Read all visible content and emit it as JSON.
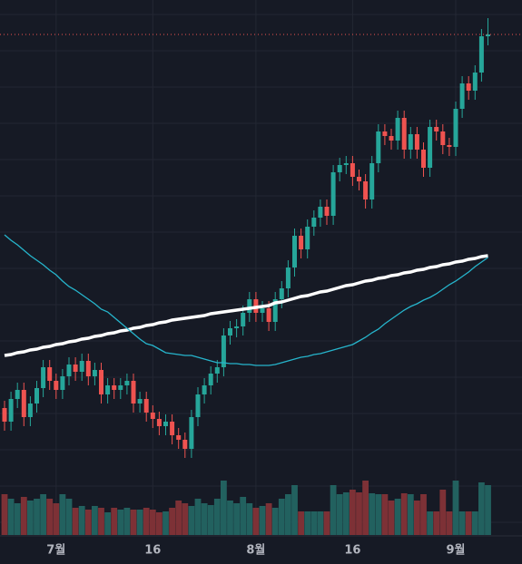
{
  "chart_data": {
    "type": "candlestick",
    "categories": [
      null,
      null,
      null,
      null,
      null,
      null,
      null,
      null,
      "7월",
      null,
      null,
      null,
      null,
      null,
      null,
      null,
      null,
      null,
      null,
      null,
      null,
      null,
      null,
      "16",
      null,
      null,
      null,
      null,
      null,
      null,
      null,
      null,
      null,
      null,
      null,
      null,
      null,
      null,
      null,
      "8월",
      null,
      null,
      null,
      null,
      null,
      null,
      null,
      null,
      null,
      null,
      null,
      null,
      null,
      null,
      "16",
      null,
      null,
      null,
      null,
      null,
      null,
      null,
      null,
      null,
      null,
      null,
      null,
      null,
      null,
      null,
      "9월",
      null,
      null,
      null,
      null,
      null
    ],
    "open": [
      70,
      55,
      80,
      90,
      60,
      75,
      92,
      115,
      100,
      90,
      105,
      118,
      110,
      122,
      105,
      112,
      85,
      95,
      90,
      95,
      100,
      75,
      80,
      65,
      58,
      50,
      55,
      40,
      35,
      25,
      60,
      85,
      95,
      108,
      115,
      150,
      158,
      160,
      175,
      190,
      175,
      180,
      165,
      190,
      202,
      225,
      260,
      245,
      270,
      280,
      292,
      282,
      330,
      338,
      340,
      325,
      320,
      300,
      340,
      375,
      370,
      365,
      390,
      355,
      372,
      355,
      335,
      380,
      375,
      360,
      358,
      400,
      428,
      420,
      440,
      480
    ],
    "high": [
      78,
      88,
      98,
      98,
      83,
      100,
      123,
      123,
      108,
      113,
      126,
      126,
      130,
      130,
      120,
      120,
      103,
      103,
      103,
      108,
      108,
      88,
      88,
      73,
      66,
      63,
      63,
      48,
      43,
      68,
      93,
      103,
      116,
      123,
      158,
      166,
      168,
      183,
      198,
      198,
      188,
      188,
      198,
      210,
      233,
      268,
      268,
      278,
      288,
      300,
      300,
      338,
      346,
      348,
      348,
      333,
      328,
      348,
      383,
      383,
      378,
      398,
      398,
      380,
      380,
      363,
      388,
      388,
      383,
      368,
      408,
      436,
      436,
      448,
      488,
      500
    ],
    "low": [
      45,
      45,
      70,
      50,
      50,
      65,
      82,
      90,
      80,
      80,
      95,
      100,
      100,
      95,
      95,
      75,
      75,
      80,
      80,
      85,
      65,
      65,
      55,
      48,
      40,
      40,
      30,
      25,
      15,
      15,
      50,
      75,
      85,
      98,
      105,
      140,
      148,
      150,
      165,
      165,
      165,
      155,
      155,
      180,
      192,
      215,
      235,
      235,
      260,
      270,
      272,
      272,
      320,
      328,
      315,
      310,
      290,
      290,
      330,
      360,
      355,
      355,
      345,
      345,
      345,
      325,
      325,
      365,
      350,
      348,
      348,
      390,
      410,
      410,
      430,
      470
    ],
    "close": [
      55,
      80,
      90,
      60,
      75,
      92,
      115,
      100,
      90,
      105,
      118,
      110,
      122,
      105,
      112,
      85,
      95,
      90,
      95,
      100,
      75,
      80,
      65,
      58,
      50,
      55,
      40,
      35,
      25,
      60,
      85,
      95,
      108,
      115,
      150,
      158,
      160,
      175,
      190,
      175,
      180,
      165,
      190,
      202,
      225,
      260,
      245,
      270,
      280,
      292,
      282,
      330,
      338,
      340,
      325,
      320,
      300,
      340,
      375,
      370,
      365,
      390,
      355,
      372,
      355,
      335,
      380,
      375,
      360,
      358,
      400,
      428,
      420,
      440,
      480,
      482
    ],
    "volume": [
      45,
      40,
      35,
      42,
      38,
      40,
      45,
      40,
      35,
      45,
      40,
      30,
      32,
      28,
      32,
      30,
      25,
      30,
      28,
      30,
      28,
      28,
      30,
      28,
      25,
      26,
      30,
      38,
      35,
      32,
      40,
      35,
      33,
      40,
      60,
      38,
      35,
      42,
      35,
      30,
      32,
      35,
      30,
      40,
      45,
      55,
      26,
      26,
      26,
      26,
      26,
      55,
      45,
      47,
      50,
      47,
      60,
      46,
      45,
      45,
      38,
      40,
      46,
      45,
      38,
      45,
      26,
      26,
      50,
      26,
      60,
      26,
      26,
      26,
      58,
      55
    ],
    "moving_averages": [
      {
        "color": "#ffffff",
        "values": [
          128,
          129,
          131,
          132,
          134,
          135,
          137,
          138,
          140,
          141,
          143,
          144,
          146,
          147,
          149,
          150,
          152,
          153,
          155,
          156,
          158,
          159,
          161,
          162,
          164,
          165,
          167,
          168,
          169,
          170,
          171,
          172,
          174,
          175,
          176,
          177,
          178,
          179,
          180,
          181,
          182,
          183,
          186,
          187,
          189,
          191,
          193,
          194,
          196,
          198,
          199,
          201,
          203,
          205,
          206,
          208,
          210,
          211,
          213,
          214,
          216,
          217,
          219,
          220,
          222,
          223,
          225,
          226,
          228,
          229,
          231,
          232,
          234,
          235,
          237,
          238
        ]
      },
      {
        "color": "#26b5cc",
        "values": [
          261,
          255,
          250,
          244,
          238,
          233,
          228,
          222,
          217,
          210,
          204,
          200,
          195,
          190,
          185,
          179,
          176,
          170,
          164,
          158,
          152,
          146,
          141,
          139,
          135,
          131,
          130,
          129,
          128,
          128,
          126,
          124,
          122,
          120,
          120,
          119,
          119,
          118,
          118,
          117,
          117,
          117,
          118,
          120,
          122,
          124,
          126,
          127,
          129,
          130,
          132,
          134,
          136,
          138,
          140,
          144,
          148,
          153,
          157,
          163,
          168,
          173,
          178,
          182,
          185,
          189,
          192,
          196,
          201,
          206,
          210,
          215,
          220,
          226,
          231,
          236
        ]
      }
    ],
    "up_color": "#26a69a",
    "down_color": "#ef5350",
    "volume_up_color": "#22615f",
    "volume_down_color": "#7d3136",
    "ylim": [
      0,
      520
    ],
    "volume_ylim": [
      0,
      70
    ],
    "grid": true
  }
}
